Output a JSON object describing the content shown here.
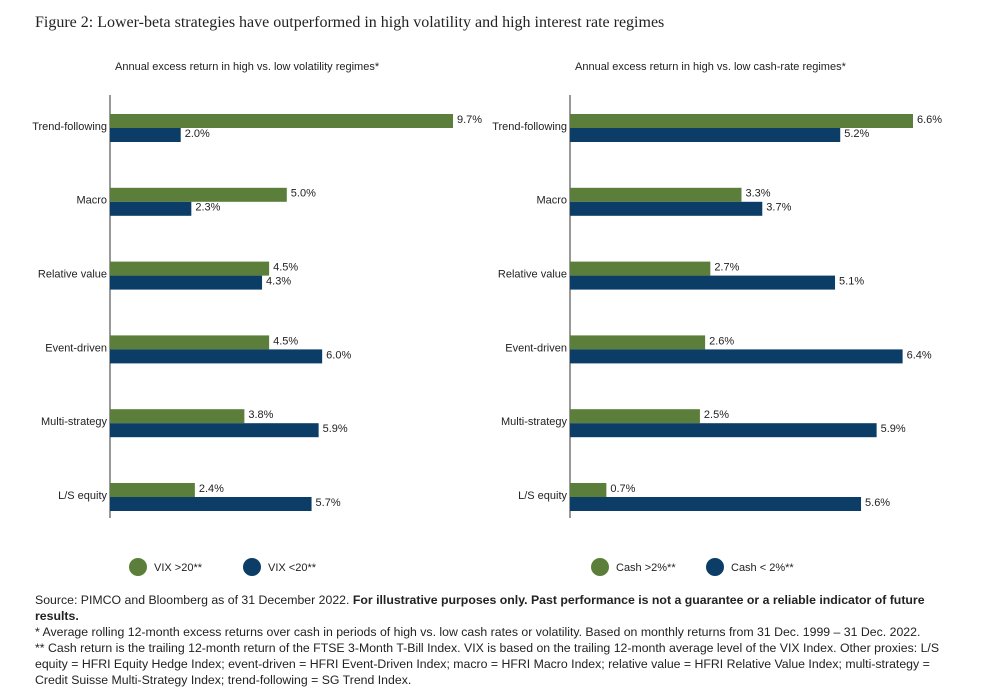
{
  "figure_title": "Figure 2: Lower-beta strategies have outperformed in high volatility and high interest rate regimes",
  "chart_data": [
    {
      "type": "bar",
      "orientation": "horizontal",
      "title": "Annual excess return in high vs. low volatility regimes*",
      "categories": [
        "Trend-following",
        "Macro",
        "Relative value",
        "Event-driven",
        "Multi-strategy",
        "L/S equity"
      ],
      "series": [
        {
          "name": "VIX >20**",
          "color": "#5b7f3a",
          "values": [
            9.7,
            5.0,
            4.5,
            4.5,
            3.8,
            2.4
          ],
          "value_labels": [
            "9.7%",
            "5.0%",
            "4.5%",
            "4.5%",
            "3.8%",
            "2.4%"
          ]
        },
        {
          "name": "VIX <20**",
          "color": "#0b3d66",
          "values": [
            2.0,
            2.3,
            4.3,
            6.0,
            5.9,
            5.7
          ],
          "value_labels": [
            "2.0%",
            "2.3%",
            "4.3%",
            "6.0%",
            "5.9%",
            "5.7%"
          ]
        }
      ]
    },
    {
      "type": "bar",
      "orientation": "horizontal",
      "title": "Annual excess return in high vs. low cash-rate regimes*",
      "categories": [
        "Trend-following",
        "Macro",
        "Relative value",
        "Event-driven",
        "Multi-strategy",
        "L/S equity"
      ],
      "series": [
        {
          "name": "Cash >2%**",
          "color": "#5b7f3a",
          "values": [
            6.6,
            3.3,
            2.7,
            2.6,
            2.5,
            0.7
          ],
          "value_labels": [
            "6.6%",
            "3.3%",
            "2.7%",
            "2.6%",
            "2.5%",
            "0.7%"
          ]
        },
        {
          "name": "Cash < 2%**",
          "color": "#0b3d66",
          "values": [
            5.2,
            3.7,
            5.1,
            6.4,
            5.9,
            5.6
          ],
          "value_labels": [
            "5.2%",
            "3.7%",
            "5.1%",
            "6.4%",
            "5.9%",
            "5.6%"
          ]
        }
      ]
    }
  ],
  "footnotes": {
    "source": "Source: PIMCO and Bloomberg as of 31 December 2022.",
    "disclaimer": "For illustrative purposes only. Past performance is not a guarantee or a reliable indicator of future results.",
    "notes": [
      "* Average rolling 12-month excess returns over cash in periods of high vs. low cash rates or volatility. Based on monthly returns from 31 Dec. 1999 – 31 Dec. 2022.",
      "** Cash return is the trailing 12-month return of the FTSE 3-Month T-Bill Index. VIX is based on the trailing 12-month average level of the VIX Index. Other proxies: L/S equity = HFRI Equity Hedge Index; event-driven = HFRI Event-Driven Index; macro = HFRI Macro Index; relative value = HFRI Relative Value Index; multi-strategy = Credit Suisse Multi-Strategy Index; trend-following = SG Trend Index."
    ]
  }
}
